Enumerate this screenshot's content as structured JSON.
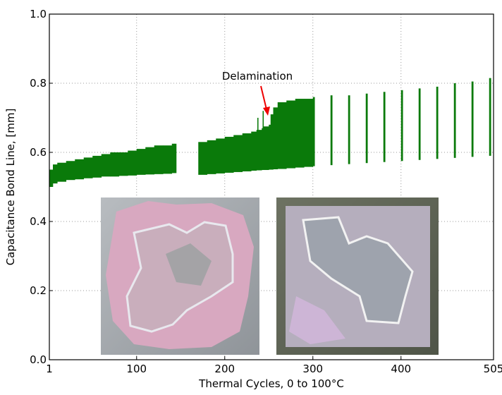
{
  "chart_data": {
    "type": "range",
    "xlabel": "Thermal Cycles, 0 to 100°C",
    "ylabel": "Capacitance Bond Line, [mm]",
    "annotation": "Delamination",
    "color": "#0a7a0a",
    "grid": true,
    "xlim": [
      1,
      505
    ],
    "xticks": [
      1,
      100,
      200,
      300,
      400,
      505
    ],
    "ylim": [
      0,
      1
    ],
    "yticks": [
      {
        "value": 0,
        "label": "0.0"
      },
      0.2,
      0.4,
      0.6,
      0.8,
      {
        "value": 1,
        "label": "1.0"
      }
    ],
    "x": [
      1,
      5,
      10,
      20,
      30,
      40,
      50,
      60,
      70,
      80,
      90,
      100,
      110,
      120,
      130,
      140,
      143,
      170,
      180,
      190,
      200,
      210,
      220,
      230,
      236,
      237,
      238,
      242,
      243,
      244,
      250,
      252,
      255,
      260,
      270,
      280,
      290,
      300,
      320,
      340,
      360,
      380,
      400,
      420,
      440,
      460,
      480,
      500
    ],
    "high": [
      0.55,
      0.565,
      0.57,
      0.575,
      0.58,
      0.585,
      0.59,
      0.595,
      0.6,
      0.6,
      0.605,
      0.61,
      0.615,
      0.62,
      0.62,
      0.625,
      0.625,
      0.63,
      0.635,
      0.64,
      0.645,
      0.65,
      0.655,
      0.66,
      0.665,
      0.7,
      0.665,
      0.67,
      0.72,
      0.675,
      0.68,
      0.71,
      0.73,
      0.745,
      0.75,
      0.755,
      0.755,
      0.76,
      0.765,
      0.765,
      0.77,
      0.775,
      0.78,
      0.785,
      0.79,
      0.8,
      0.805,
      0.815
    ],
    "low": [
      0.5,
      0.51,
      0.515,
      0.52,
      0.522,
      0.525,
      0.527,
      0.53,
      0.53,
      0.532,
      0.533,
      0.535,
      0.536,
      0.537,
      0.538,
      0.54,
      0.54,
      0.535,
      0.537,
      0.539,
      0.541,
      0.543,
      0.545,
      0.547,
      0.548,
      0.548,
      0.548,
      0.549,
      0.549,
      0.549,
      0.55,
      0.55,
      0.551,
      0.552,
      0.554,
      0.556,
      0.558,
      0.56,
      0.563,
      0.566,
      0.569,
      0.572,
      0.575,
      0.578,
      0.581,
      0.584,
      0.587,
      0.59
    ]
  }
}
